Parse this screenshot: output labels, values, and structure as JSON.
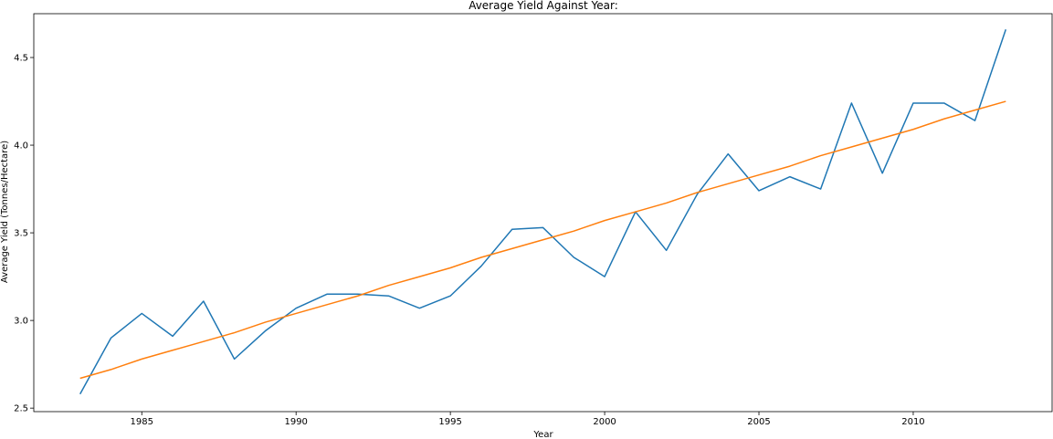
{
  "chart_data": {
    "type": "line",
    "title": "Average Yield Against Year:",
    "xlabel": "Year",
    "ylabel": "Average Yield (Tonnes/Hectare)",
    "xlim": [
      1981.5,
      2014.5
    ],
    "ylim": [
      2.48,
      4.75
    ],
    "xticks": [
      1985,
      1990,
      1995,
      2000,
      2005,
      2010
    ],
    "yticks": [
      2.5,
      3.0,
      3.5,
      4.0,
      4.5
    ],
    "ytick_labels": [
      "2.5",
      "3.0",
      "3.5",
      "4.0",
      "4.5"
    ],
    "grid": false,
    "legend": "none",
    "x": [
      1983,
      1984,
      1985,
      1986,
      1987,
      1988,
      1989,
      1990,
      1991,
      1992,
      1993,
      1994,
      1995,
      1996,
      1997,
      1998,
      1999,
      2000,
      2001,
      2002,
      2003,
      2004,
      2005,
      2006,
      2007,
      2008,
      2009,
      2010,
      2011,
      2012,
      2013
    ],
    "series": [
      {
        "color": "#1f77b4",
        "values": [
          2.58,
          2.9,
          3.04,
          2.91,
          3.11,
          2.78,
          2.94,
          3.07,
          3.15,
          3.15,
          3.14,
          3.07,
          3.14,
          3.31,
          3.52,
          3.53,
          3.36,
          3.25,
          3.62,
          3.4,
          3.72,
          3.95,
          3.74,
          3.82,
          3.75,
          4.24,
          3.84,
          4.24,
          4.24,
          4.14,
          4.66
        ]
      },
      {
        "color": "#ff7f0e",
        "values": [
          2.67,
          2.72,
          2.78,
          2.83,
          2.88,
          2.93,
          2.99,
          3.04,
          3.09,
          3.14,
          3.2,
          3.25,
          3.3,
          3.36,
          3.41,
          3.46,
          3.51,
          3.57,
          3.62,
          3.67,
          3.73,
          3.78,
          3.83,
          3.88,
          3.94,
          3.99,
          4.04,
          4.09,
          4.15,
          4.2,
          4.25
        ]
      }
    ]
  }
}
